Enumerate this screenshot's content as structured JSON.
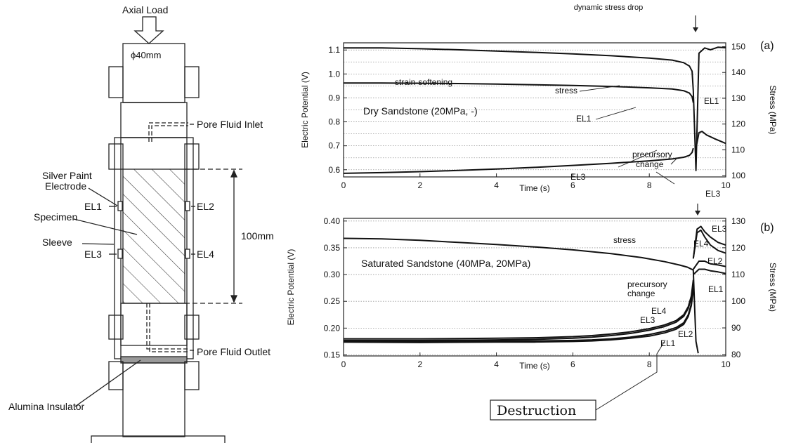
{
  "apparatus": {
    "axial_load": "Axial Load",
    "diameter": "ϕ40mm",
    "pore_inlet": "Pore Fluid Inlet",
    "pore_outlet": "Pore Fluid Outlet",
    "silver_paint_1": "Silver Paint",
    "silver_paint_2": "Electrode",
    "specimen": "Specimen",
    "sleeve": "Sleeve",
    "length": "100mm",
    "alumina": "Alumina Insulator",
    "el1": "EL1",
    "el2": "EL2",
    "el3": "EL3",
    "el4": "EL4"
  },
  "destruction_label": "Destruction",
  "chart_data": [
    {
      "panel": "(a)",
      "type": "line",
      "title": "",
      "xlabel": "Time (s)",
      "ylabel": "Electric Potential (V)",
      "y2label": "Stress (MPa)",
      "xlim": [
        0,
        10
      ],
      "ylim": [
        0.57,
        1.13
      ],
      "y2lim": [
        99.5,
        151.5
      ],
      "x_ticks": [
        "0",
        "2",
        "4",
        "6",
        "8",
        "10"
      ],
      "x_tick_values": [
        0,
        2,
        4,
        6,
        8,
        10
      ],
      "y_ticks": [
        "0.6",
        "0.7",
        "0.8",
        "0.9",
        "1.0",
        "1.1"
      ],
      "y_tick_values": [
        0.6,
        0.7,
        0.8,
        0.9,
        1.0,
        1.1
      ],
      "y2_ticks": [
        "100",
        "110",
        "120",
        "130",
        "140",
        "150"
      ],
      "y2_tick_values": [
        100,
        110,
        120,
        130,
        140,
        150
      ],
      "gridlines_y": [
        0.6,
        0.65,
        0.7,
        0.75,
        0.8,
        0.85,
        0.9,
        0.95,
        1.0,
        1.05,
        1.1
      ],
      "condition": "Dry Sandstone (20MPa, -)",
      "series": [
        {
          "name": "stress",
          "axis": "right",
          "x": [
            0,
            1,
            2,
            3,
            4,
            5,
            6,
            7,
            8,
            8.6,
            8.9,
            9.05,
            9.12,
            9.15,
            9.18,
            9.22,
            9.3,
            9.45,
            9.6,
            9.8,
            10.0
          ],
          "values": [
            149.5,
            149.5,
            149.2,
            148.8,
            148.3,
            147.8,
            147.2,
            146.5,
            145.6,
            144.8,
            143.8,
            142.5,
            140.5,
            133,
            120,
            102,
            147.5,
            149.5,
            148.8,
            149.8,
            149.6
          ]
        },
        {
          "name": "EL1",
          "axis": "left",
          "x": [
            0,
            1,
            2,
            3,
            4,
            5,
            6,
            7,
            8,
            8.6,
            8.9,
            9.05,
            9.12,
            9.15
          ],
          "values": [
            0.962,
            0.962,
            0.961,
            0.96,
            0.958,
            0.955,
            0.952,
            0.948,
            0.942,
            0.937,
            0.93,
            0.92,
            0.905,
            0.88
          ]
        },
        {
          "name": "EL3",
          "axis": "left",
          "x": [
            0,
            1,
            2,
            3,
            4,
            5,
            6,
            7,
            8,
            8.6,
            8.9,
            9.05,
            9.12,
            9.15
          ],
          "values": [
            0.585,
            0.588,
            0.592,
            0.597,
            0.603,
            0.61,
            0.618,
            0.627,
            0.637,
            0.645,
            0.652,
            0.66,
            0.672,
            0.69
          ]
        },
        {
          "name": "EL3",
          "axis": "left",
          "x": [
            9.22,
            9.3,
            9.38,
            9.5,
            9.7,
            9.85,
            10.0
          ],
          "values": [
            0.69,
            0.755,
            0.76,
            0.745,
            0.73,
            0.72,
            0.71
          ]
        }
      ],
      "annotations": [
        "dynamic stress drop",
        "strain-softening",
        "stress",
        "EL1",
        "precursory",
        "change",
        "EL3",
        "EL1",
        "EL3",
        "(a)"
      ]
    },
    {
      "panel": "(b)",
      "type": "line",
      "title": "",
      "xlabel": "Time (s)",
      "ylabel": "Electric Potential (V)",
      "y2label": "Stress (MPa)",
      "xlim": [
        0,
        10
      ],
      "ylim": [
        0.148,
        0.405
      ],
      "y2lim": [
        79.5,
        131
      ],
      "x_ticks": [
        "0",
        "2",
        "4",
        "6",
        "8",
        "10"
      ],
      "x_tick_values": [
        0,
        2,
        4,
        6,
        8,
        10
      ],
      "y_ticks": [
        "0.15",
        "0.20",
        "0.25",
        "0.30",
        "0.35",
        "0.40"
      ],
      "y_tick_values": [
        0.15,
        0.2,
        0.25,
        0.3,
        0.35,
        0.4
      ],
      "y2_ticks": [
        "80",
        "90",
        "100",
        "110",
        "120",
        "130"
      ],
      "y2_tick_values": [
        80,
        90,
        100,
        110,
        120,
        130
      ],
      "gridlines_y": [
        0.15,
        0.2,
        0.25,
        0.3,
        0.35,
        0.4
      ],
      "condition": "Saturated Sandstone (40MPa, 20MPa)",
      "series": [
        {
          "name": "stress",
          "axis": "right",
          "x": [
            0,
            1,
            2,
            3,
            4,
            5,
            6,
            7,
            7.8,
            8.4,
            8.8,
            9.0,
            9.1,
            9.15,
            9.18,
            9.22,
            9.28
          ],
          "values": [
            123.5,
            123.3,
            122.8,
            122.0,
            121.2,
            120.3,
            119.2,
            117.8,
            116.3,
            114.8,
            113.5,
            112.7,
            112,
            111.6,
            100,
            85,
            80.5
          ]
        },
        {
          "name": "EL4",
          "axis": "left",
          "x": [
            0,
            2,
            4,
            5,
            6,
            6.5,
            7,
            7.5,
            8,
            8.4,
            8.7,
            8.9,
            9.02,
            9.1,
            9.15
          ],
          "values": [
            0.18,
            0.18,
            0.181,
            0.182,
            0.184,
            0.186,
            0.189,
            0.193,
            0.199,
            0.206,
            0.214,
            0.225,
            0.24,
            0.26,
            0.29
          ]
        },
        {
          "name": "EL3",
          "axis": "left",
          "x": [
            0,
            2,
            4,
            5,
            6,
            6.5,
            7,
            7.5,
            8,
            8.4,
            8.7,
            8.9,
            9.02,
            9.1,
            9.15
          ],
          "values": [
            0.177,
            0.177,
            0.178,
            0.179,
            0.181,
            0.183,
            0.186,
            0.19,
            0.196,
            0.203,
            0.211,
            0.222,
            0.237,
            0.256,
            0.285
          ]
        },
        {
          "name": "EL1",
          "axis": "left",
          "x": [
            0,
            2,
            4,
            5,
            6,
            6.5,
            7,
            7.5,
            8,
            8.4,
            8.7,
            8.9,
            9.02,
            9.1,
            9.15
          ],
          "values": [
            0.176,
            0.175,
            0.176,
            0.176,
            0.177,
            0.178,
            0.18,
            0.183,
            0.188,
            0.194,
            0.201,
            0.21,
            0.225,
            0.245,
            0.275
          ]
        },
        {
          "name": "EL2",
          "axis": "left",
          "x": [
            0,
            2,
            4,
            5,
            6,
            6.5,
            7,
            7.5,
            8,
            8.4,
            8.7,
            8.9,
            9.02,
            9.1,
            9.15
          ],
          "values": [
            0.174,
            0.173,
            0.174,
            0.174,
            0.175,
            0.176,
            0.178,
            0.181,
            0.185,
            0.191,
            0.198,
            0.207,
            0.222,
            0.242,
            0.27
          ]
        },
        {
          "name": "EL3",
          "axis": "left",
          "x": [
            9.15,
            9.25,
            9.35,
            9.45,
            9.6,
            9.8,
            10.0
          ],
          "values": [
            0.33,
            0.385,
            0.39,
            0.38,
            0.37,
            0.36,
            0.355
          ]
        },
        {
          "name": "EL4",
          "axis": "left",
          "x": [
            9.15,
            9.25,
            9.35,
            9.45,
            9.6,
            9.8,
            10.0
          ],
          "values": [
            0.33,
            0.378,
            0.383,
            0.37,
            0.355,
            0.345,
            0.34
          ]
        },
        {
          "name": "EL2",
          "axis": "left",
          "x": [
            9.15,
            9.3,
            9.45,
            9.6,
            9.8,
            10.0
          ],
          "values": [
            0.31,
            0.325,
            0.325,
            0.32,
            0.318,
            0.315
          ]
        },
        {
          "name": "EL1",
          "axis": "left",
          "x": [
            9.15,
            9.3,
            9.45,
            9.6,
            9.8,
            10.0
          ],
          "values": [
            0.3,
            0.31,
            0.31,
            0.307,
            0.305,
            0.302
          ]
        }
      ],
      "annotations": [
        "stress",
        "EL4",
        "EL3",
        "EL2",
        "EL1",
        "precursory",
        "change",
        "EL4",
        "EL3",
        "EL1",
        "EL2",
        "(b)"
      ]
    }
  ]
}
